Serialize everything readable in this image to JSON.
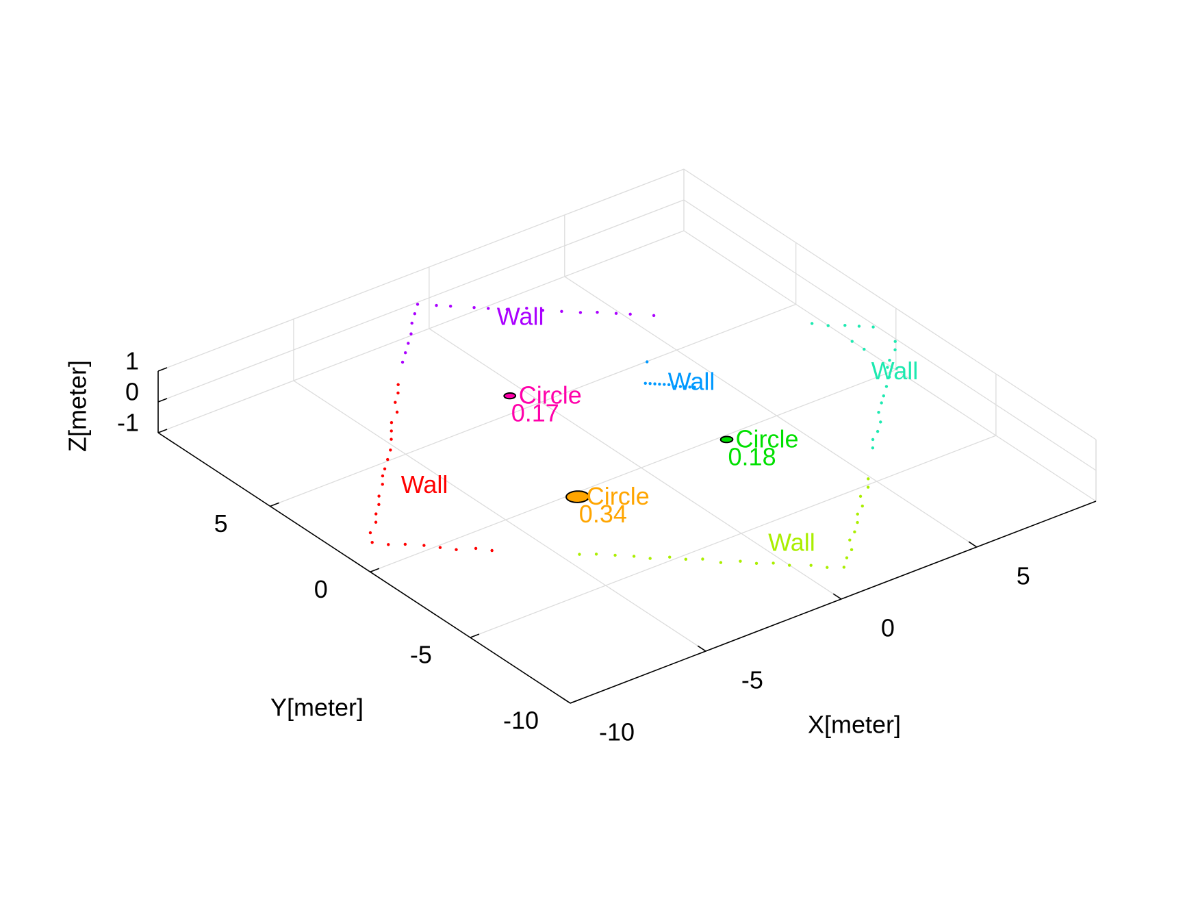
{
  "chart_data": {
    "type": "scatter3d",
    "xlabel": "X[meter]",
    "ylabel": "Y[meter]",
    "zlabel": "Z[meter]",
    "xlim": [
      -10,
      9.4
    ],
    "ylim": [
      -10,
      10.6
    ],
    "zlim": [
      -1,
      1
    ],
    "xticks": [
      -10,
      -5,
      0,
      5
    ],
    "yticks": [
      -10,
      -5,
      0,
      5
    ],
    "zticks": [
      -1,
      0,
      1
    ],
    "grid": true,
    "series": [
      {
        "name": "Wall",
        "color": "#ff0000",
        "z": 0,
        "x": [
          -3.8,
          -4.1,
          -4.5,
          -4.8,
          -5.3,
          -5.6,
          -5.9,
          -6.3,
          -6.7,
          -7.1,
          -7.4,
          -7.7,
          -8.2,
          -8.5,
          -8.9,
          -9.2,
          -9.7,
          -10.0,
          -9.7,
          -9.3,
          -8.9,
          -8.6,
          -8.3,
          -7.8,
          -7.5
        ],
        "y": [
          7.0,
          6.6,
          6.2,
          5.7,
          5.3,
          4.9,
          4.5,
          4.0,
          3.6,
          3.2,
          2.9,
          2.5,
          2.0,
          1.6,
          1.2,
          0.8,
          0.4,
          -0.1,
          -0.5,
          -0.8,
          -1.2,
          -1.6,
          -2.0,
          -2.3,
          -2.7
        ]
      },
      {
        "name": "Wall",
        "color": "#aa00ff",
        "z": 0,
        "x": [
          -2.9,
          -2.5,
          -2.1,
          -1.7,
          -1.3,
          -0.9,
          -0.5,
          -0.1,
          0.2,
          0.7,
          1.0,
          1.4,
          1.9,
          2.2,
          2.6,
          3.0,
          3.4,
          3.8,
          4.1,
          4.6
        ],
        "y": [
          8.0,
          8.4,
          8.8,
          9.2,
          9.7,
          10.1,
          10.5,
          10.1,
          9.8,
          9.3,
          9.0,
          8.6,
          8.3,
          7.9,
          7.5,
          7.1,
          6.8,
          6.4,
          6.1,
          5.6
        ]
      },
      {
        "name": "Wall",
        "color": "#0099ff",
        "z": 0,
        "x": [
          2.8,
          2.0,
          2.1,
          2.2,
          2.3,
          2.4,
          2.5,
          2.6,
          2.7,
          2.8,
          2.9,
          3.0
        ],
        "y": [
          3.5,
          2.5,
          2.4,
          2.3,
          2.2,
          2.1,
          2.0,
          1.8,
          1.7,
          1.6,
          1.5,
          1.4
        ]
      },
      {
        "name": "Wall",
        "color": "#1de9b0",
        "z": 0,
        "x": [
          8.0,
          8.3,
          8.7,
          9.0,
          9.3,
          8.3,
          8.3,
          9.3,
          9.0,
          8.5,
          8.2,
          7.9,
          7.5,
          7.1,
          6.8,
          6.4,
          6.1,
          5.7,
          5.3,
          5.0
        ],
        "y": [
          2.3,
          1.9,
          1.6,
          1.3,
          1.0,
          0.7,
          0.1,
          -0.1,
          -0.5,
          -0.9,
          -1.2,
          -1.7,
          -2.1,
          -2.5,
          -2.8,
          -3.2,
          -3.7,
          -4.1,
          -4.4,
          -4.8
        ]
      },
      {
        "name": "Wall",
        "color": "#aaee00",
        "z": 0,
        "x": [
          3.8,
          3.5,
          3.0,
          2.7,
          2.3,
          2.0,
          1.6,
          1.2,
          0.9,
          0.5,
          0.1,
          -0.3,
          -0.6,
          -1.1,
          -1.4,
          -1.8,
          -2.1,
          -2.6,
          -2.9,
          -3.3,
          -3.6,
          -4.1,
          -4.4,
          -4.8,
          -5.2,
          -5.6
        ],
        "y": [
          -6.2,
          -6.6,
          -6.9,
          -7.4,
          -7.7,
          -8.1,
          -8.5,
          -8.8,
          -9.3,
          -9.6,
          -10.0,
          -9.7,
          -9.3,
          -8.9,
          -8.5,
          -8.2,
          -7.8,
          -7.5,
          -7.0,
          -6.7,
          -6.3,
          -6.0,
          -5.6,
          -5.2,
          -4.8,
          -4.5
        ]
      }
    ],
    "circles": [
      {
        "name": "Circle",
        "color": "#ff00aa",
        "x": -1.6,
        "y": 4.4,
        "z": 0,
        "radius": 0.17
      },
      {
        "name": "Circle",
        "color": "#00e000",
        "x": 1.9,
        "y": -1.7,
        "z": 0,
        "radius": 0.18
      },
      {
        "name": "Circle",
        "color": "#ffa500",
        "x": -3.6,
        "y": -1.7,
        "z": 0,
        "radius": 0.34
      }
    ]
  }
}
